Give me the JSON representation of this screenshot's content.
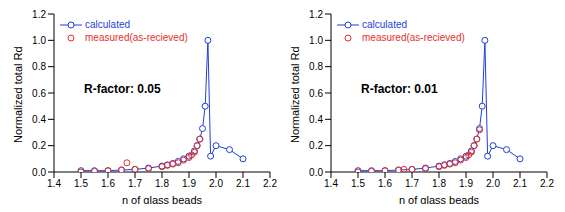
{
  "chart_data": [
    {
      "type": "line",
      "x_label": "n of glass beads",
      "y_label": "Normalized total Rd",
      "annotations": [
        "R-factor: 0.05"
      ],
      "xlim": [
        1.4,
        2.2
      ],
      "xticks": [
        1.4,
        1.5,
        1.6,
        1.7,
        1.8,
        1.9,
        {
          "value": 2,
          "label": "2.0"
        },
        2.1,
        2.2
      ],
      "ylim": [
        0,
        1.2
      ],
      "yticks": [
        {
          "value": 0,
          "label": "0.0"
        },
        0.2,
        0.4,
        0.6,
        0.8,
        {
          "value": 1,
          "label": "1.0"
        },
        1.2
      ],
      "grid": false,
      "legend": "top-left",
      "series": [
        {
          "name": "calculated",
          "color": "#1f3fd8",
          "type": "line",
          "marker": "circle",
          "x": [
            1.5,
            1.55,
            1.6,
            1.65,
            1.7,
            1.75,
            1.8,
            1.82,
            1.84,
            1.86,
            1.88,
            1.9,
            1.92,
            1.93,
            1.94,
            1.95,
            1.96,
            1.97,
            1.98,
            2.0,
            2.05,
            2.1
          ],
          "values": [
            0.01,
            0.01,
            0.01,
            0.015,
            0.02,
            0.03,
            0.045,
            0.055,
            0.065,
            0.08,
            0.1,
            0.12,
            0.16,
            0.2,
            0.25,
            0.33,
            0.5,
            1.0,
            0.12,
            0.2,
            0.17,
            0.1
          ]
        },
        {
          "name": "measured(as-recieved)",
          "color": "#e8302a",
          "type": "scatter",
          "marker": "circle",
          "x": [
            1.5,
            1.55,
            1.6,
            1.65,
            1.67,
            1.7,
            1.75,
            1.8,
            1.82,
            1.84,
            1.86,
            1.88,
            1.9,
            1.91,
            1.92,
            1.93,
            1.94
          ],
          "values": [
            0,
            0.005,
            0.01,
            0.015,
            0.07,
            0.02,
            0.025,
            0.04,
            0.05,
            0.06,
            0.07,
            0.09,
            0.11,
            0.13,
            0.15,
            0.2,
            0.25
          ]
        }
      ]
    },
    {
      "type": "line",
      "x_label": "n of glass beads",
      "y_label": "Normalized total Rd",
      "annotations": [
        "R-factor: 0.01"
      ],
      "xlim": [
        1.4,
        2.2
      ],
      "xticks": [
        1.4,
        1.5,
        1.6,
        1.7,
        1.8,
        1.9,
        {
          "value": 2,
          "label": "2.0"
        },
        2.1,
        2.2
      ],
      "ylim": [
        0,
        1.2
      ],
      "yticks": [
        {
          "value": 0,
          "label": "0.0"
        },
        0.2,
        0.4,
        0.6,
        0.8,
        {
          "value": 1,
          "label": "1.0"
        },
        1.2
      ],
      "grid": false,
      "legend": "top-left",
      "series": [
        {
          "name": "calculated",
          "color": "#1f3fd8",
          "type": "line",
          "marker": "circle",
          "x": [
            1.5,
            1.55,
            1.6,
            1.65,
            1.7,
            1.75,
            1.8,
            1.82,
            1.84,
            1.86,
            1.88,
            1.9,
            1.92,
            1.93,
            1.94,
            1.95,
            1.96,
            1.97,
            1.98,
            2.0,
            2.05,
            2.1
          ],
          "values": [
            0.01,
            0.01,
            0.01,
            0.015,
            0.02,
            0.03,
            0.045,
            0.055,
            0.065,
            0.08,
            0.1,
            0.12,
            0.16,
            0.2,
            0.25,
            0.33,
            0.5,
            1.0,
            0.12,
            0.2,
            0.17,
            0.1
          ]
        },
        {
          "name": "measured(as-recieved)",
          "color": "#e8302a",
          "type": "scatter",
          "marker": "circle",
          "x": [
            1.5,
            1.55,
            1.6,
            1.65,
            1.67,
            1.7,
            1.75,
            1.8,
            1.82,
            1.84,
            1.86,
            1.88,
            1.9,
            1.91,
            1.92,
            1.93,
            1.94,
            1.95
          ],
          "values": [
            0,
            0.005,
            0.01,
            0.015,
            0.02,
            0.02,
            0.025,
            0.04,
            0.05,
            0.06,
            0.07,
            0.09,
            0.11,
            0.13,
            0.15,
            0.2,
            0.25,
            0.32
          ]
        }
      ]
    }
  ]
}
